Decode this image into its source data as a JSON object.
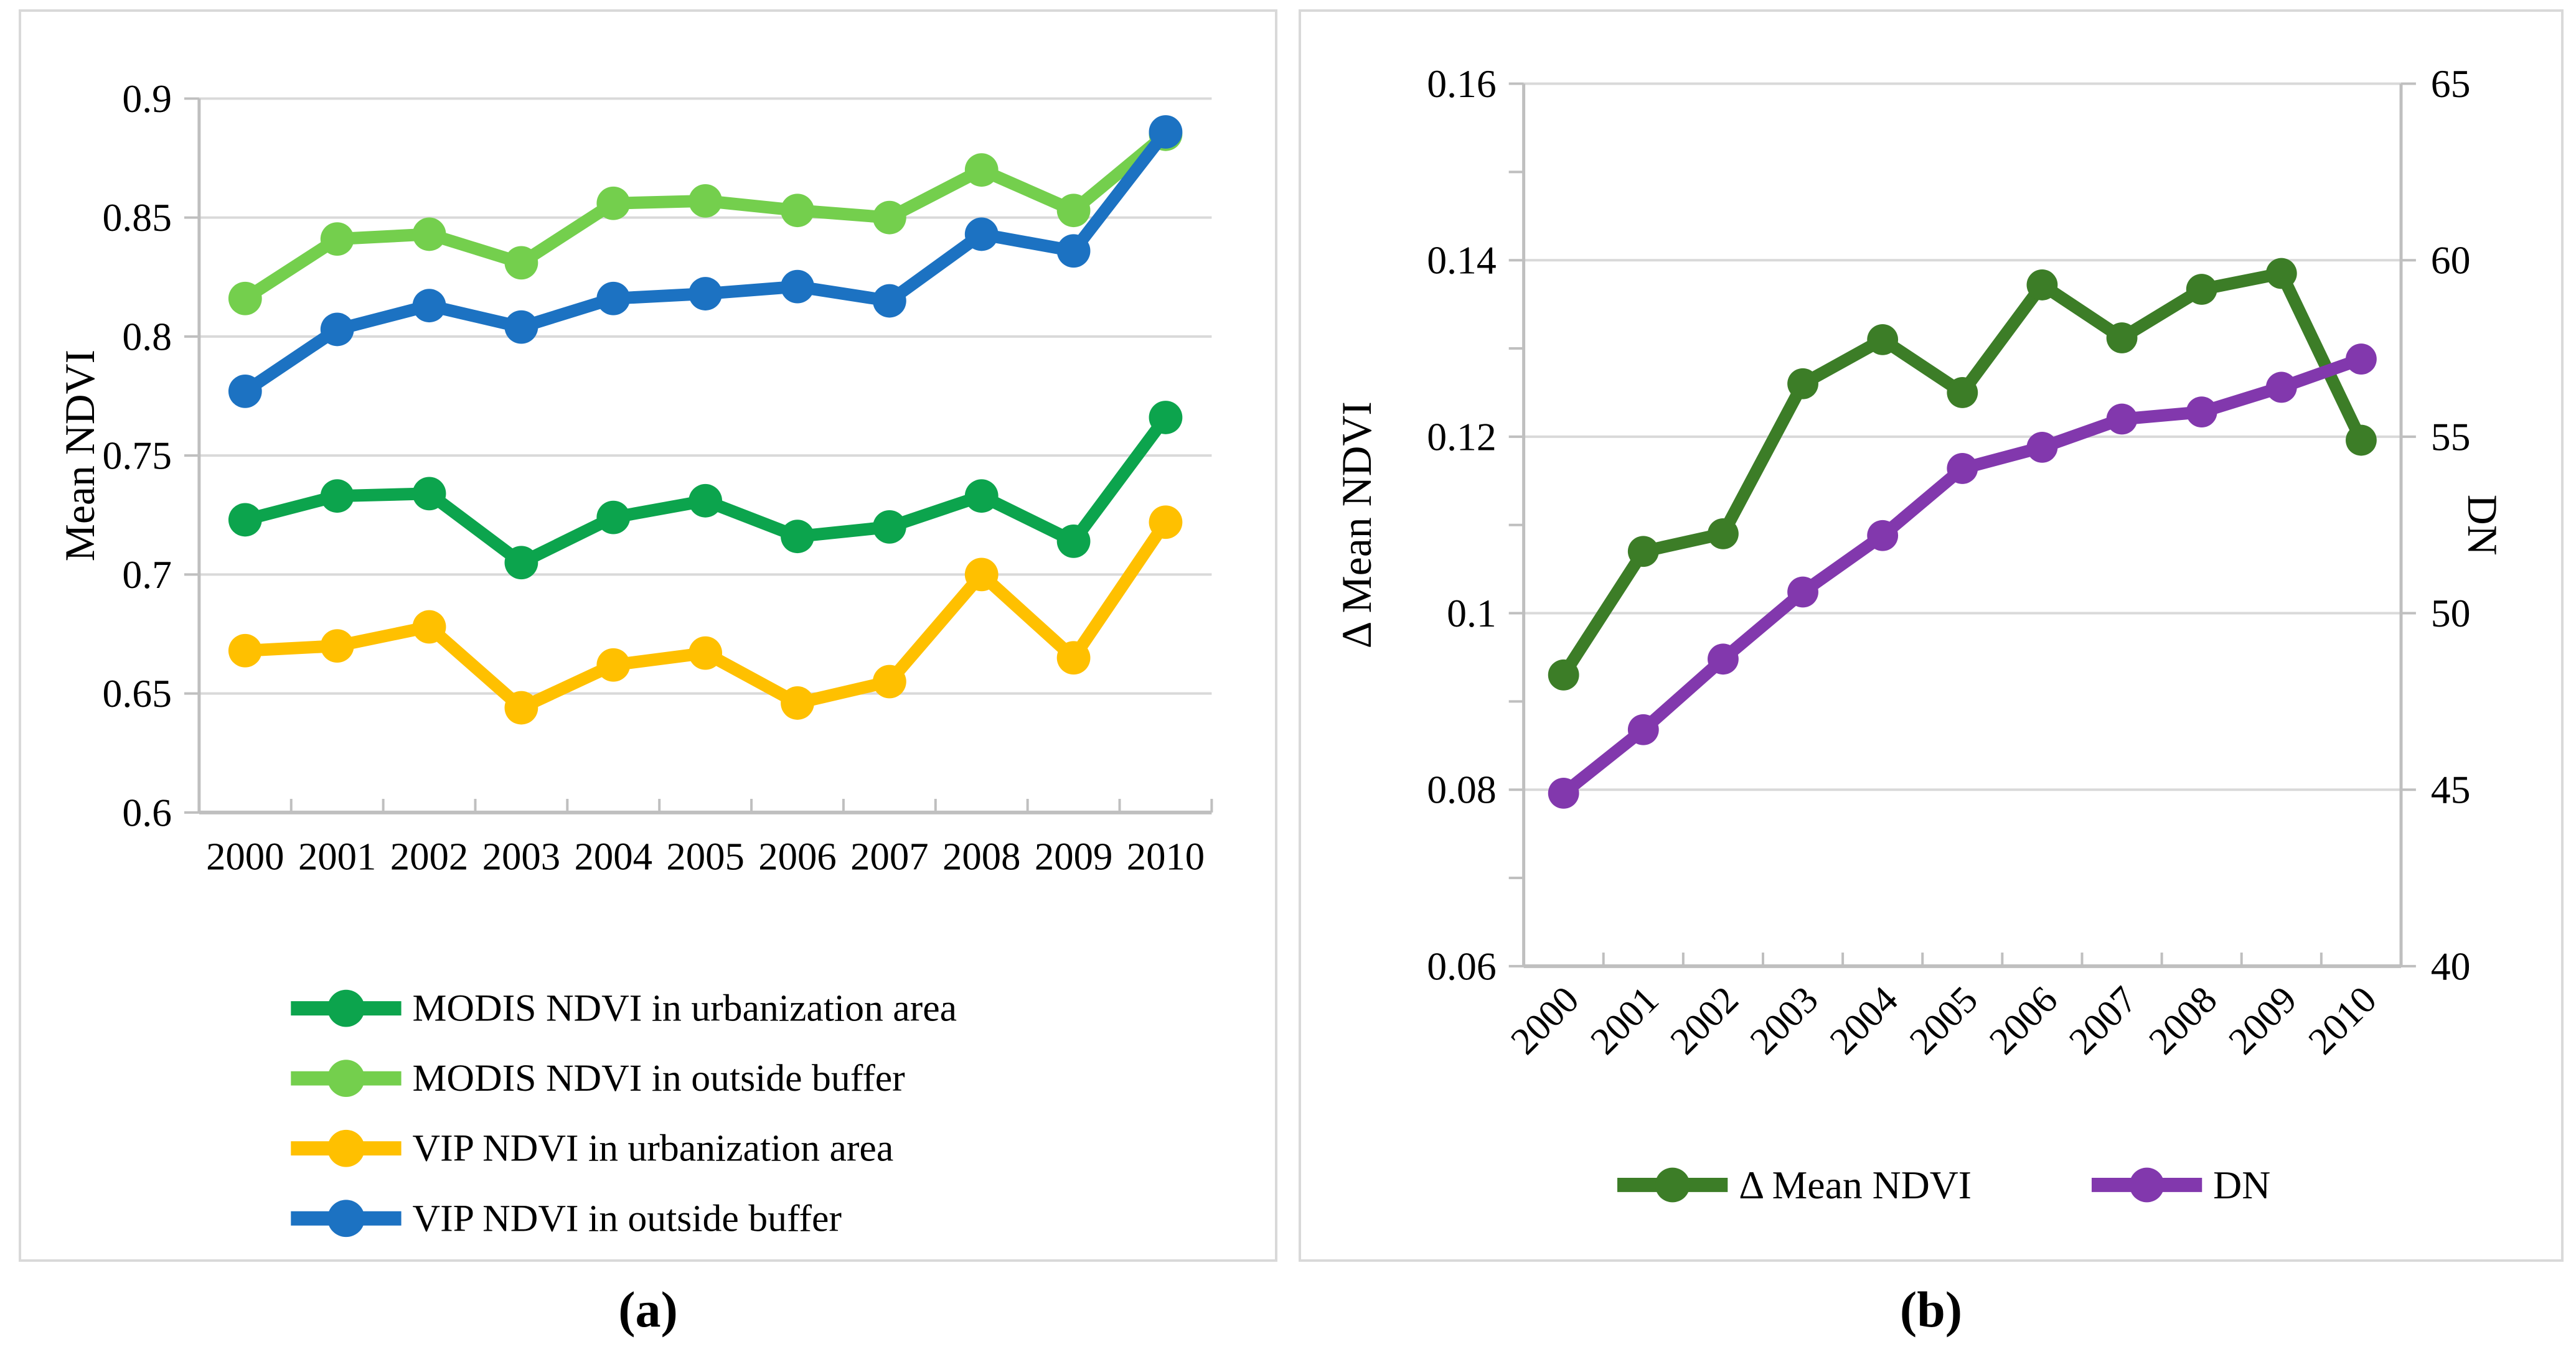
{
  "figure": {
    "captions": {
      "a": "(a)",
      "b": "(b)"
    }
  },
  "style_colors": {
    "gridline": "#d9d9d9",
    "axis": "#bfbfbf",
    "text": "#000000",
    "panel_border": "#d9d9d9"
  },
  "chart_data": [
    {
      "id": "a",
      "type": "line",
      "categories": [
        "2000",
        "2001",
        "2002",
        "2003",
        "2004",
        "2005",
        "2006",
        "2007",
        "2008",
        "2009",
        "2010"
      ],
      "ylabel": "Mean NDVI",
      "ylim": [
        0.6,
        0.9
      ],
      "grid": true,
      "legend_position": "bottom-left-vertical",
      "yticks": [
        {
          "v": 0.9,
          "label": "0.9"
        },
        {
          "v": 0.85,
          "label": "0.85"
        },
        {
          "v": 0.8,
          "label": "0.8"
        },
        {
          "v": 0.75,
          "label": "0.75"
        },
        {
          "v": 0.7,
          "label": "0.7"
        },
        {
          "v": 0.65,
          "label": "0.65"
        },
        {
          "v": 0.6,
          "label": "0.6"
        }
      ],
      "series": [
        {
          "name": "MODIS NDVI in urbanization area",
          "color": "#0ca44d",
          "values": [
            0.723,
            0.733,
            0.734,
            0.705,
            0.724,
            0.731,
            0.716,
            0.72,
            0.733,
            0.714,
            0.766
          ]
        },
        {
          "name": "MODIS NDVI in outside buffer",
          "color": "#74cf4d",
          "values": [
            0.816,
            0.841,
            0.843,
            0.831,
            0.856,
            0.857,
            0.853,
            0.85,
            0.87,
            0.853,
            0.885
          ]
        },
        {
          "name": "VIP NDVI in urbanization area",
          "color": "#ffc000",
          "values": [
            0.668,
            0.67,
            0.678,
            0.644,
            0.662,
            0.667,
            0.646,
            0.655,
            0.7,
            0.665,
            0.722
          ]
        },
        {
          "name": "VIP NDVI in outside buffer",
          "color": "#1c72c2",
          "values": [
            0.777,
            0.803,
            0.813,
            0.804,
            0.816,
            0.818,
            0.821,
            0.815,
            0.843,
            0.836,
            0.886
          ]
        }
      ]
    },
    {
      "id": "b",
      "type": "line",
      "categories": [
        "2000",
        "2001",
        "2002",
        "2003",
        "2004",
        "2005",
        "2006",
        "2007",
        "2008",
        "2009",
        "2010"
      ],
      "ylabel_left": "Δ Mean NDVI",
      "ylabel_right": "DN",
      "ylim_left": [
        0.06,
        0.16
      ],
      "ylim_right": [
        40,
        65
      ],
      "grid": true,
      "legend_position": "bottom-horizontal",
      "xtick_rotation": -45,
      "yticks_left": [
        {
          "v": 0.16,
          "label": "0.16"
        },
        {
          "v": 0.14,
          "label": "0.14"
        },
        {
          "v": 0.12,
          "label": "0.12"
        },
        {
          "v": 0.1,
          "label": "0.1"
        },
        {
          "v": 0.08,
          "label": "0.08"
        },
        {
          "v": 0.06,
          "label": "0.06"
        }
      ],
      "yticks_right": [
        {
          "v": 65,
          "label": "65"
        },
        {
          "v": 60,
          "label": "60"
        },
        {
          "v": 55,
          "label": "55"
        },
        {
          "v": 50,
          "label": "50"
        },
        {
          "v": 45,
          "label": "45"
        },
        {
          "v": 40,
          "label": "40"
        }
      ],
      "series": [
        {
          "name": "Δ Mean NDVI",
          "axis": "left",
          "color": "#3c7d27",
          "values": [
            0.093,
            0.107,
            0.109,
            0.126,
            0.131,
            0.125,
            0.1372,
            0.1312,
            0.1367,
            0.1385,
            0.1196
          ]
        },
        {
          "name": "DN",
          "axis": "right",
          "color": "#8238ad",
          "values": [
            44.9,
            46.7,
            48.7,
            50.6,
            52.2,
            54.1,
            54.7,
            55.5,
            55.7,
            56.4,
            57.2
          ]
        }
      ]
    }
  ]
}
